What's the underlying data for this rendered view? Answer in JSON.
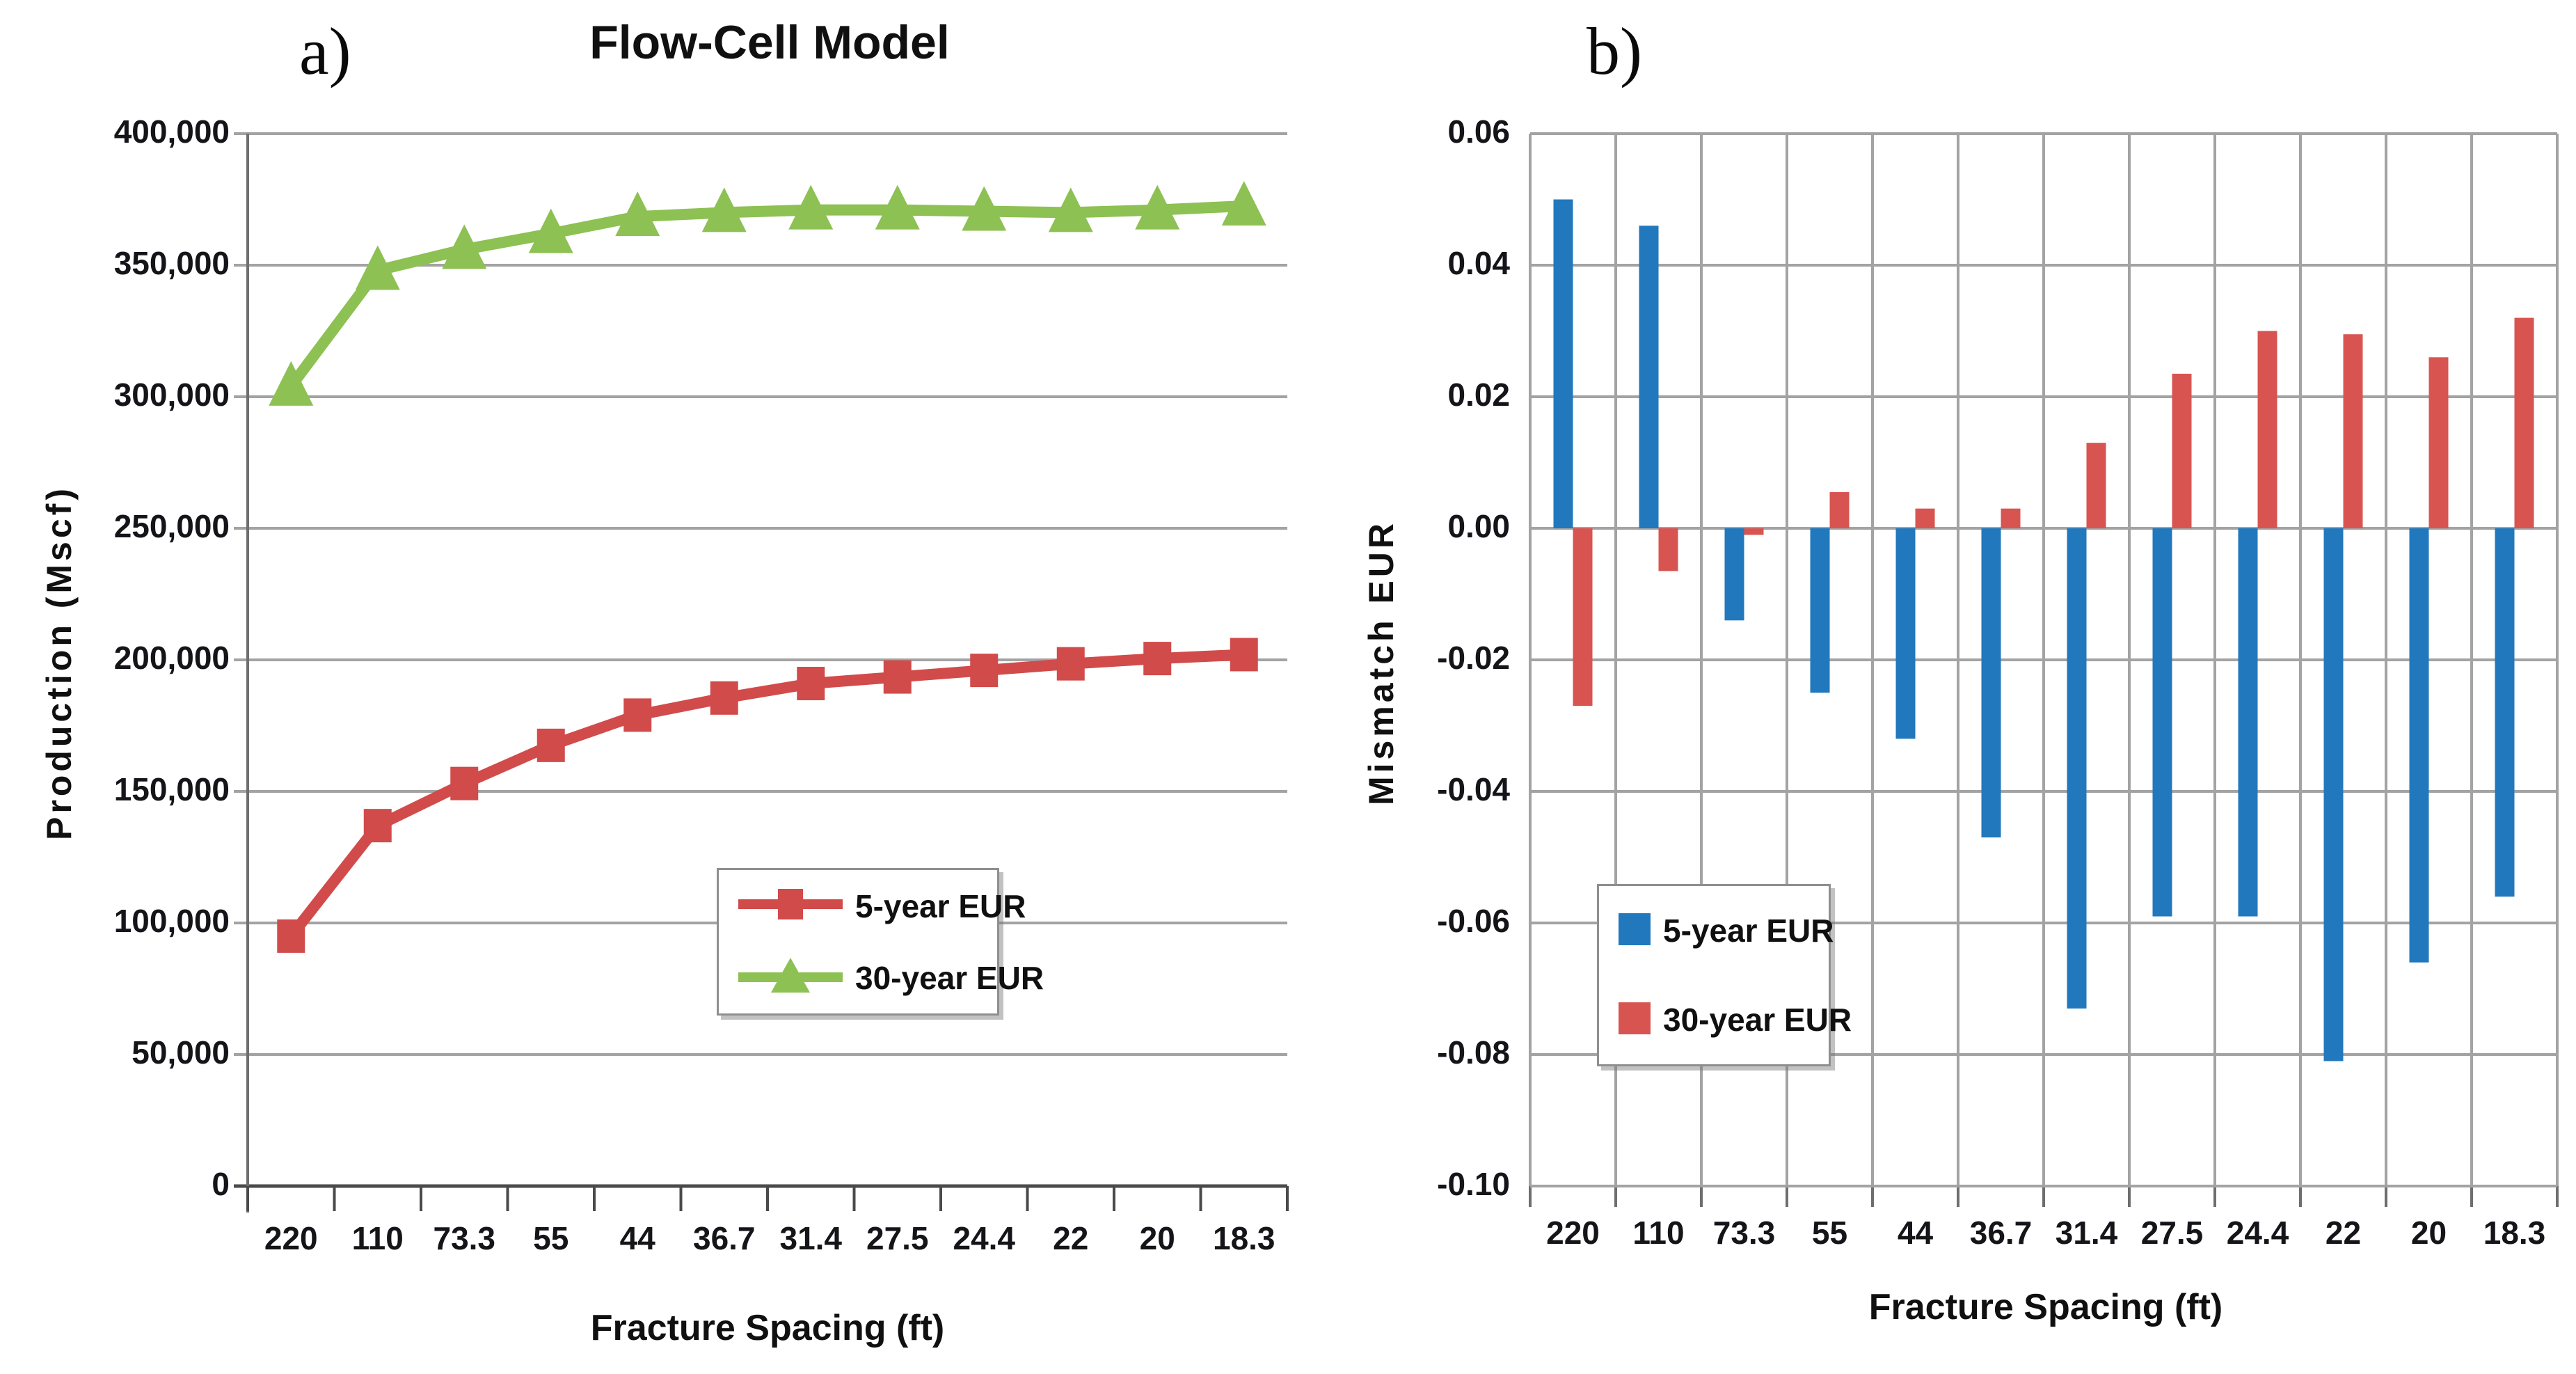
{
  "chart_data": [
    {
      "type": "line",
      "panel_label": "a)",
      "title": "Flow-Cell Model",
      "xlabel": "Fracture Spacing (ft)",
      "ylabel": "Production (Mscf)",
      "categories": [
        "220",
        "110",
        "73.3",
        "55",
        "44",
        "36.7",
        "31.4",
        "27.5",
        "24.4",
        "22",
        "20",
        "18.3"
      ],
      "series": [
        {
          "name": "5-year EUR",
          "color": "#d14b4b",
          "marker": "square",
          "values": [
            95000,
            137000,
            153000,
            167500,
            179000,
            185500,
            191000,
            193500,
            196000,
            198500,
            200500,
            202000
          ]
        },
        {
          "name": "30-year EUR",
          "color": "#8dc153",
          "marker": "triangle",
          "values": [
            304000,
            348000,
            356000,
            362000,
            368500,
            370000,
            371000,
            371000,
            370500,
            370000,
            371000,
            372500
          ]
        }
      ],
      "ylim": [
        0,
        400000
      ],
      "ytick_step": 50000,
      "ytick_labels": [
        "400,000",
        "350,000",
        "300,000",
        "250,000",
        "200,000",
        "150,000",
        "100,000",
        "50,000",
        "0"
      ],
      "grid": "horizontal",
      "legend_position": "inside-lower-middle"
    },
    {
      "type": "bar",
      "panel_label": "b)",
      "title": "",
      "xlabel": "Fracture Spacing (ft)",
      "ylabel": "Mismatch EUR",
      "categories": [
        "220",
        "110",
        "73.3",
        "55",
        "44",
        "36.7",
        "31.4",
        "27.5",
        "24.4",
        "22",
        "20",
        "18.3"
      ],
      "series": [
        {
          "name": "5-year EUR",
          "color": "#2178bd",
          "values": [
            0.05,
            0.046,
            -0.014,
            -0.025,
            -0.032,
            -0.047,
            -0.073,
            -0.059,
            -0.059,
            -0.081,
            -0.066,
            -0.056
          ]
        },
        {
          "name": "30-year EUR",
          "color": "#d85450",
          "values": [
            -0.027,
            -0.0065,
            -0.001,
            0.0055,
            0.003,
            0.003,
            0.013,
            0.0235,
            0.03,
            0.0295,
            0.026,
            0.032
          ]
        }
      ],
      "ylim": [
        -0.1,
        0.06
      ],
      "ytick_step": 0.02,
      "ytick_labels": [
        "0.06",
        "0.04",
        "0.02",
        "0.00",
        "-0.02",
        "-0.04",
        "-0.06",
        "-0.08",
        "-0.10"
      ],
      "grid": "both",
      "legend_position": "inside-lower-left"
    }
  ],
  "colors": {
    "gridline": "#a3a3a3",
    "axis": "#6e6e6e",
    "baseline": "#4a4a4a",
    "text": "#111111"
  }
}
